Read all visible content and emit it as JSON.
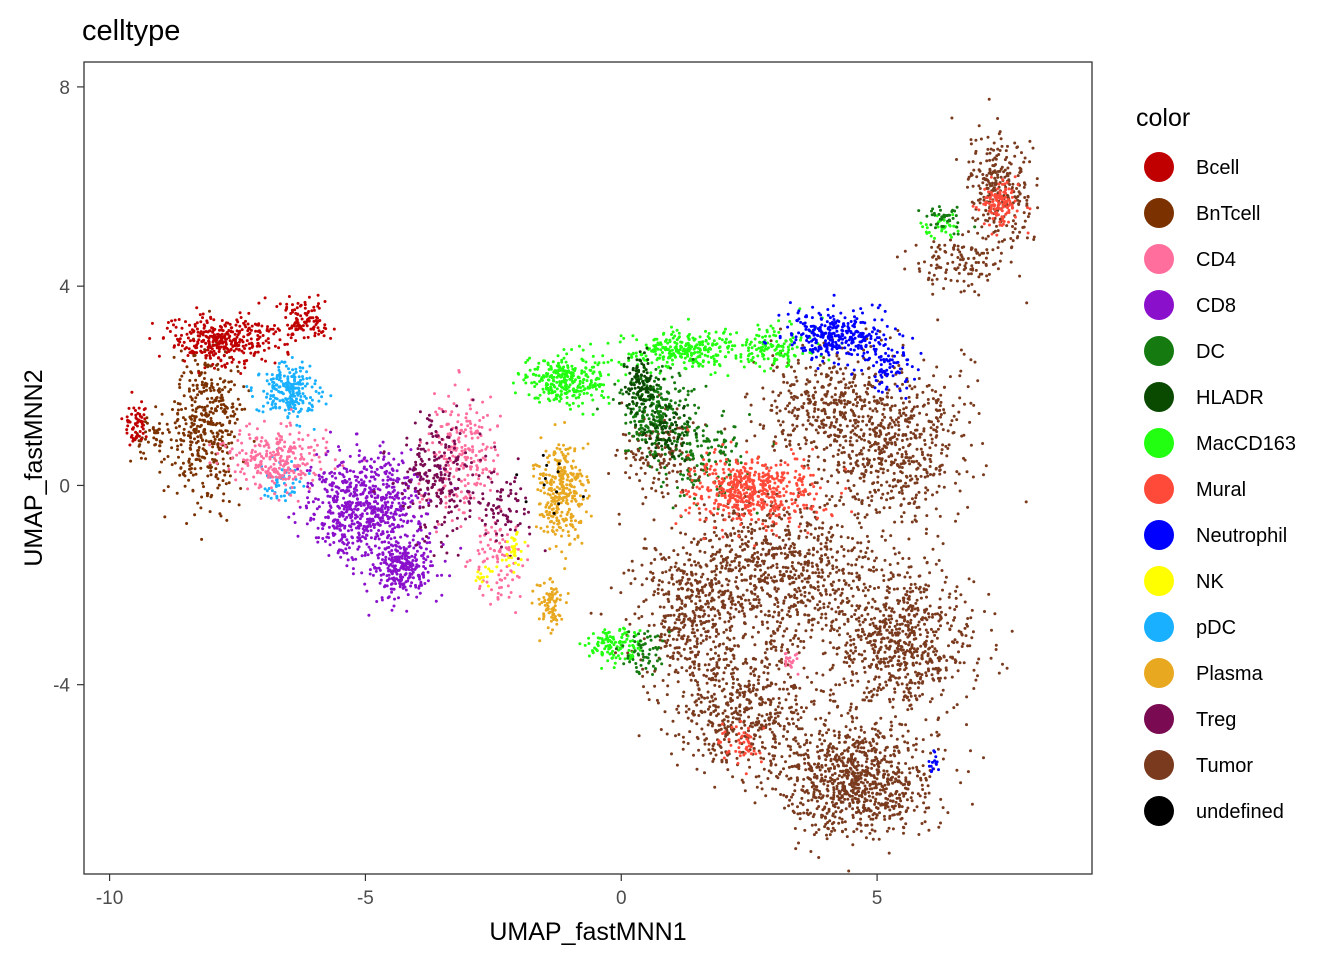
{
  "chart_data": {
    "type": "scatter",
    "title": "celltype",
    "xlabel": "UMAP_fastMNN1",
    "ylabel": "UMAP_fastMNN2",
    "xlim": [
      -10.5,
      9.2
    ],
    "ylim": [
      -7.8,
      8.5
    ],
    "x_ticks": [
      {
        "value": -10,
        "label": "-10"
      },
      {
        "value": -5,
        "label": "-5"
      },
      {
        "value": 0,
        "label": "0"
      },
      {
        "value": 5,
        "label": "5"
      }
    ],
    "y_ticks": [
      {
        "value": -4,
        "label": "-4"
      },
      {
        "value": 0,
        "label": "0"
      },
      {
        "value": 4,
        "label": "4"
      },
      {
        "value": 8,
        "label": "8"
      }
    ],
    "grid": false,
    "legend": {
      "title": "color",
      "placement": "right",
      "entries": [
        {
          "name": "Bcell",
          "color": "#C00000"
        },
        {
          "name": "BnTcell",
          "color": "#7B3200"
        },
        {
          "name": "CD4",
          "color": "#FF6E9C"
        },
        {
          "name": "CD8",
          "color": "#8A10CC"
        },
        {
          "name": "DC",
          "color": "#157A10"
        },
        {
          "name": "HLADR",
          "color": "#0A4A00"
        },
        {
          "name": "MacCD163",
          "color": "#22FF11"
        },
        {
          "name": "Mural",
          "color": "#FF4A3A"
        },
        {
          "name": "Neutrophil",
          "color": "#0000FF"
        },
        {
          "name": "NK",
          "color": "#FFFF00"
        },
        {
          "name": "pDC",
          "color": "#18B0FF"
        },
        {
          "name": "Plasma",
          "color": "#E8A820"
        },
        {
          "name": "Treg",
          "color": "#7A0A52"
        },
        {
          "name": "Tumor",
          "color": "#7A3A1E"
        },
        {
          "name": "undefined",
          "color": "#000000"
        }
      ]
    },
    "series": [
      {
        "name": "Tumor",
        "color": "#7A3A1E",
        "clusters": [
          {
            "cx": 4.6,
            "cy": -5.9,
            "sx": 1.1,
            "sy": 0.8,
            "n": 900
          },
          {
            "cx": 5.5,
            "cy": -3.2,
            "sx": 1.0,
            "sy": 1.0,
            "n": 700
          },
          {
            "cx": 3.0,
            "cy": -1.8,
            "sx": 1.6,
            "sy": 1.1,
            "n": 900
          },
          {
            "cx": 5.3,
            "cy": 0.8,
            "sx": 1.0,
            "sy": 1.2,
            "n": 600
          },
          {
            "cx": 2.4,
            "cy": -4.5,
            "sx": 1.0,
            "sy": 0.8,
            "n": 500
          },
          {
            "cx": 1.4,
            "cy": -2.6,
            "sx": 0.8,
            "sy": 0.9,
            "n": 350
          },
          {
            "cx": 4.0,
            "cy": 1.6,
            "sx": 1.0,
            "sy": 0.8,
            "n": 350
          },
          {
            "cx": 7.4,
            "cy": 6.0,
            "sx": 0.45,
            "sy": 0.8,
            "n": 280
          },
          {
            "cx": 6.6,
            "cy": 4.4,
            "sx": 0.6,
            "sy": 0.4,
            "n": 120
          },
          {
            "cx": 0.8,
            "cy": 0.6,
            "sx": 0.6,
            "sy": 0.6,
            "n": 150
          }
        ]
      },
      {
        "name": "BnTcell",
        "color": "#7B3200",
        "clusters": [
          {
            "cx": -8.1,
            "cy": 1.2,
            "sx": 0.45,
            "sy": 1.1,
            "n": 420
          },
          {
            "cx": -9.1,
            "cy": 1.0,
            "sx": 0.35,
            "sy": 0.4,
            "n": 60
          }
        ]
      },
      {
        "name": "Bcell",
        "color": "#C00000",
        "clusters": [
          {
            "cx": -7.8,
            "cy": 2.9,
            "sx": 0.8,
            "sy": 0.35,
            "n": 360
          },
          {
            "cx": -6.2,
            "cy": 3.3,
            "sx": 0.35,
            "sy": 0.3,
            "n": 110
          },
          {
            "cx": -9.5,
            "cy": 1.2,
            "sx": 0.2,
            "sy": 0.3,
            "n": 60
          }
        ]
      },
      {
        "name": "pDC",
        "color": "#18B0FF",
        "clusters": [
          {
            "cx": -6.5,
            "cy": 1.9,
            "sx": 0.4,
            "sy": 0.4,
            "n": 220
          },
          {
            "cx": -6.6,
            "cy": 0.1,
            "sx": 0.3,
            "sy": 0.3,
            "n": 60
          }
        ]
      },
      {
        "name": "CD4",
        "color": "#FF6E9C",
        "clusters": [
          {
            "cx": -6.8,
            "cy": 0.5,
            "sx": 0.7,
            "sy": 0.45,
            "n": 260
          },
          {
            "cx": -3.1,
            "cy": 0.6,
            "sx": 0.5,
            "sy": 0.8,
            "n": 220
          },
          {
            "cx": -2.4,
            "cy": -1.5,
            "sx": 0.4,
            "sy": 0.6,
            "n": 90
          },
          {
            "cx": 3.3,
            "cy": -3.5,
            "sx": 0.1,
            "sy": 0.15,
            "n": 20
          }
        ]
      },
      {
        "name": "CD8",
        "color": "#8A10CC",
        "clusters": [
          {
            "cx": -5.0,
            "cy": -0.4,
            "sx": 0.8,
            "sy": 0.7,
            "n": 700
          },
          {
            "cx": -4.3,
            "cy": -1.7,
            "sx": 0.5,
            "sy": 0.4,
            "n": 260
          }
        ]
      },
      {
        "name": "Treg",
        "color": "#7A0A52",
        "clusters": [
          {
            "cx": -3.6,
            "cy": 0.1,
            "sx": 0.5,
            "sy": 0.9,
            "n": 220
          },
          {
            "cx": -2.3,
            "cy": -0.4,
            "sx": 0.4,
            "sy": 0.6,
            "n": 80
          }
        ]
      },
      {
        "name": "Plasma",
        "color": "#E8A820",
        "clusters": [
          {
            "cx": -1.2,
            "cy": -0.1,
            "sx": 0.35,
            "sy": 0.7,
            "n": 320
          },
          {
            "cx": -1.4,
            "cy": -2.4,
            "sx": 0.2,
            "sy": 0.35,
            "n": 80
          }
        ]
      },
      {
        "name": "MacCD163",
        "color": "#22FF11",
        "clusters": [
          {
            "cx": -1.1,
            "cy": 2.1,
            "sx": 0.6,
            "sy": 0.35,
            "n": 300
          },
          {
            "cx": 1.2,
            "cy": 2.7,
            "sx": 0.9,
            "sy": 0.3,
            "n": 300
          },
          {
            "cx": -0.1,
            "cy": -3.2,
            "sx": 0.4,
            "sy": 0.25,
            "n": 120
          },
          {
            "cx": 3.0,
            "cy": 2.8,
            "sx": 0.5,
            "sy": 0.35,
            "n": 120
          },
          {
            "cx": 6.2,
            "cy": 5.2,
            "sx": 0.25,
            "sy": 0.2,
            "n": 30
          }
        ]
      },
      {
        "name": "DC",
        "color": "#157A10",
        "clusters": [
          {
            "cx": 0.6,
            "cy": 1.5,
            "sx": 0.5,
            "sy": 0.6,
            "n": 220
          },
          {
            "cx": 1.6,
            "cy": 0.6,
            "sx": 0.6,
            "sy": 0.7,
            "n": 150
          },
          {
            "cx": 6.3,
            "cy": 5.4,
            "sx": 0.3,
            "sy": 0.2,
            "n": 40
          },
          {
            "cx": 0.4,
            "cy": -3.4,
            "sx": 0.3,
            "sy": 0.3,
            "n": 60
          }
        ]
      },
      {
        "name": "HLADR",
        "color": "#0A4A00",
        "clusters": [
          {
            "cx": 0.4,
            "cy": 2.0,
            "sx": 0.25,
            "sy": 0.4,
            "n": 120
          },
          {
            "cx": 0.9,
            "cy": 1.0,
            "sx": 0.3,
            "sy": 0.4,
            "n": 80
          }
        ]
      },
      {
        "name": "Mural",
        "color": "#FF4A3A",
        "clusters": [
          {
            "cx": 2.6,
            "cy": -0.1,
            "sx": 0.9,
            "sy": 0.5,
            "n": 520
          },
          {
            "cx": 7.4,
            "cy": 5.6,
            "sx": 0.3,
            "sy": 0.35,
            "n": 120
          },
          {
            "cx": 2.3,
            "cy": -5.2,
            "sx": 0.3,
            "sy": 0.3,
            "n": 50
          }
        ]
      },
      {
        "name": "Neutrophil",
        "color": "#0000FF",
        "clusters": [
          {
            "cx": 4.2,
            "cy": 3.0,
            "sx": 0.7,
            "sy": 0.35,
            "n": 320
          },
          {
            "cx": 5.3,
            "cy": 2.4,
            "sx": 0.3,
            "sy": 0.4,
            "n": 80
          },
          {
            "cx": 6.1,
            "cy": -5.6,
            "sx": 0.1,
            "sy": 0.2,
            "n": 15
          }
        ]
      },
      {
        "name": "NK",
        "color": "#FFFF00",
        "clusters": [
          {
            "cx": -2.1,
            "cy": -1.3,
            "sx": 0.15,
            "sy": 0.25,
            "n": 30
          },
          {
            "cx": -2.7,
            "cy": -1.8,
            "sx": 0.15,
            "sy": 0.2,
            "n": 15
          }
        ]
      },
      {
        "name": "undefined",
        "color": "#000000",
        "clusters": [
          {
            "cx": -1.3,
            "cy": 0.0,
            "sx": 0.5,
            "sy": 0.6,
            "n": 12
          }
        ]
      }
    ]
  }
}
